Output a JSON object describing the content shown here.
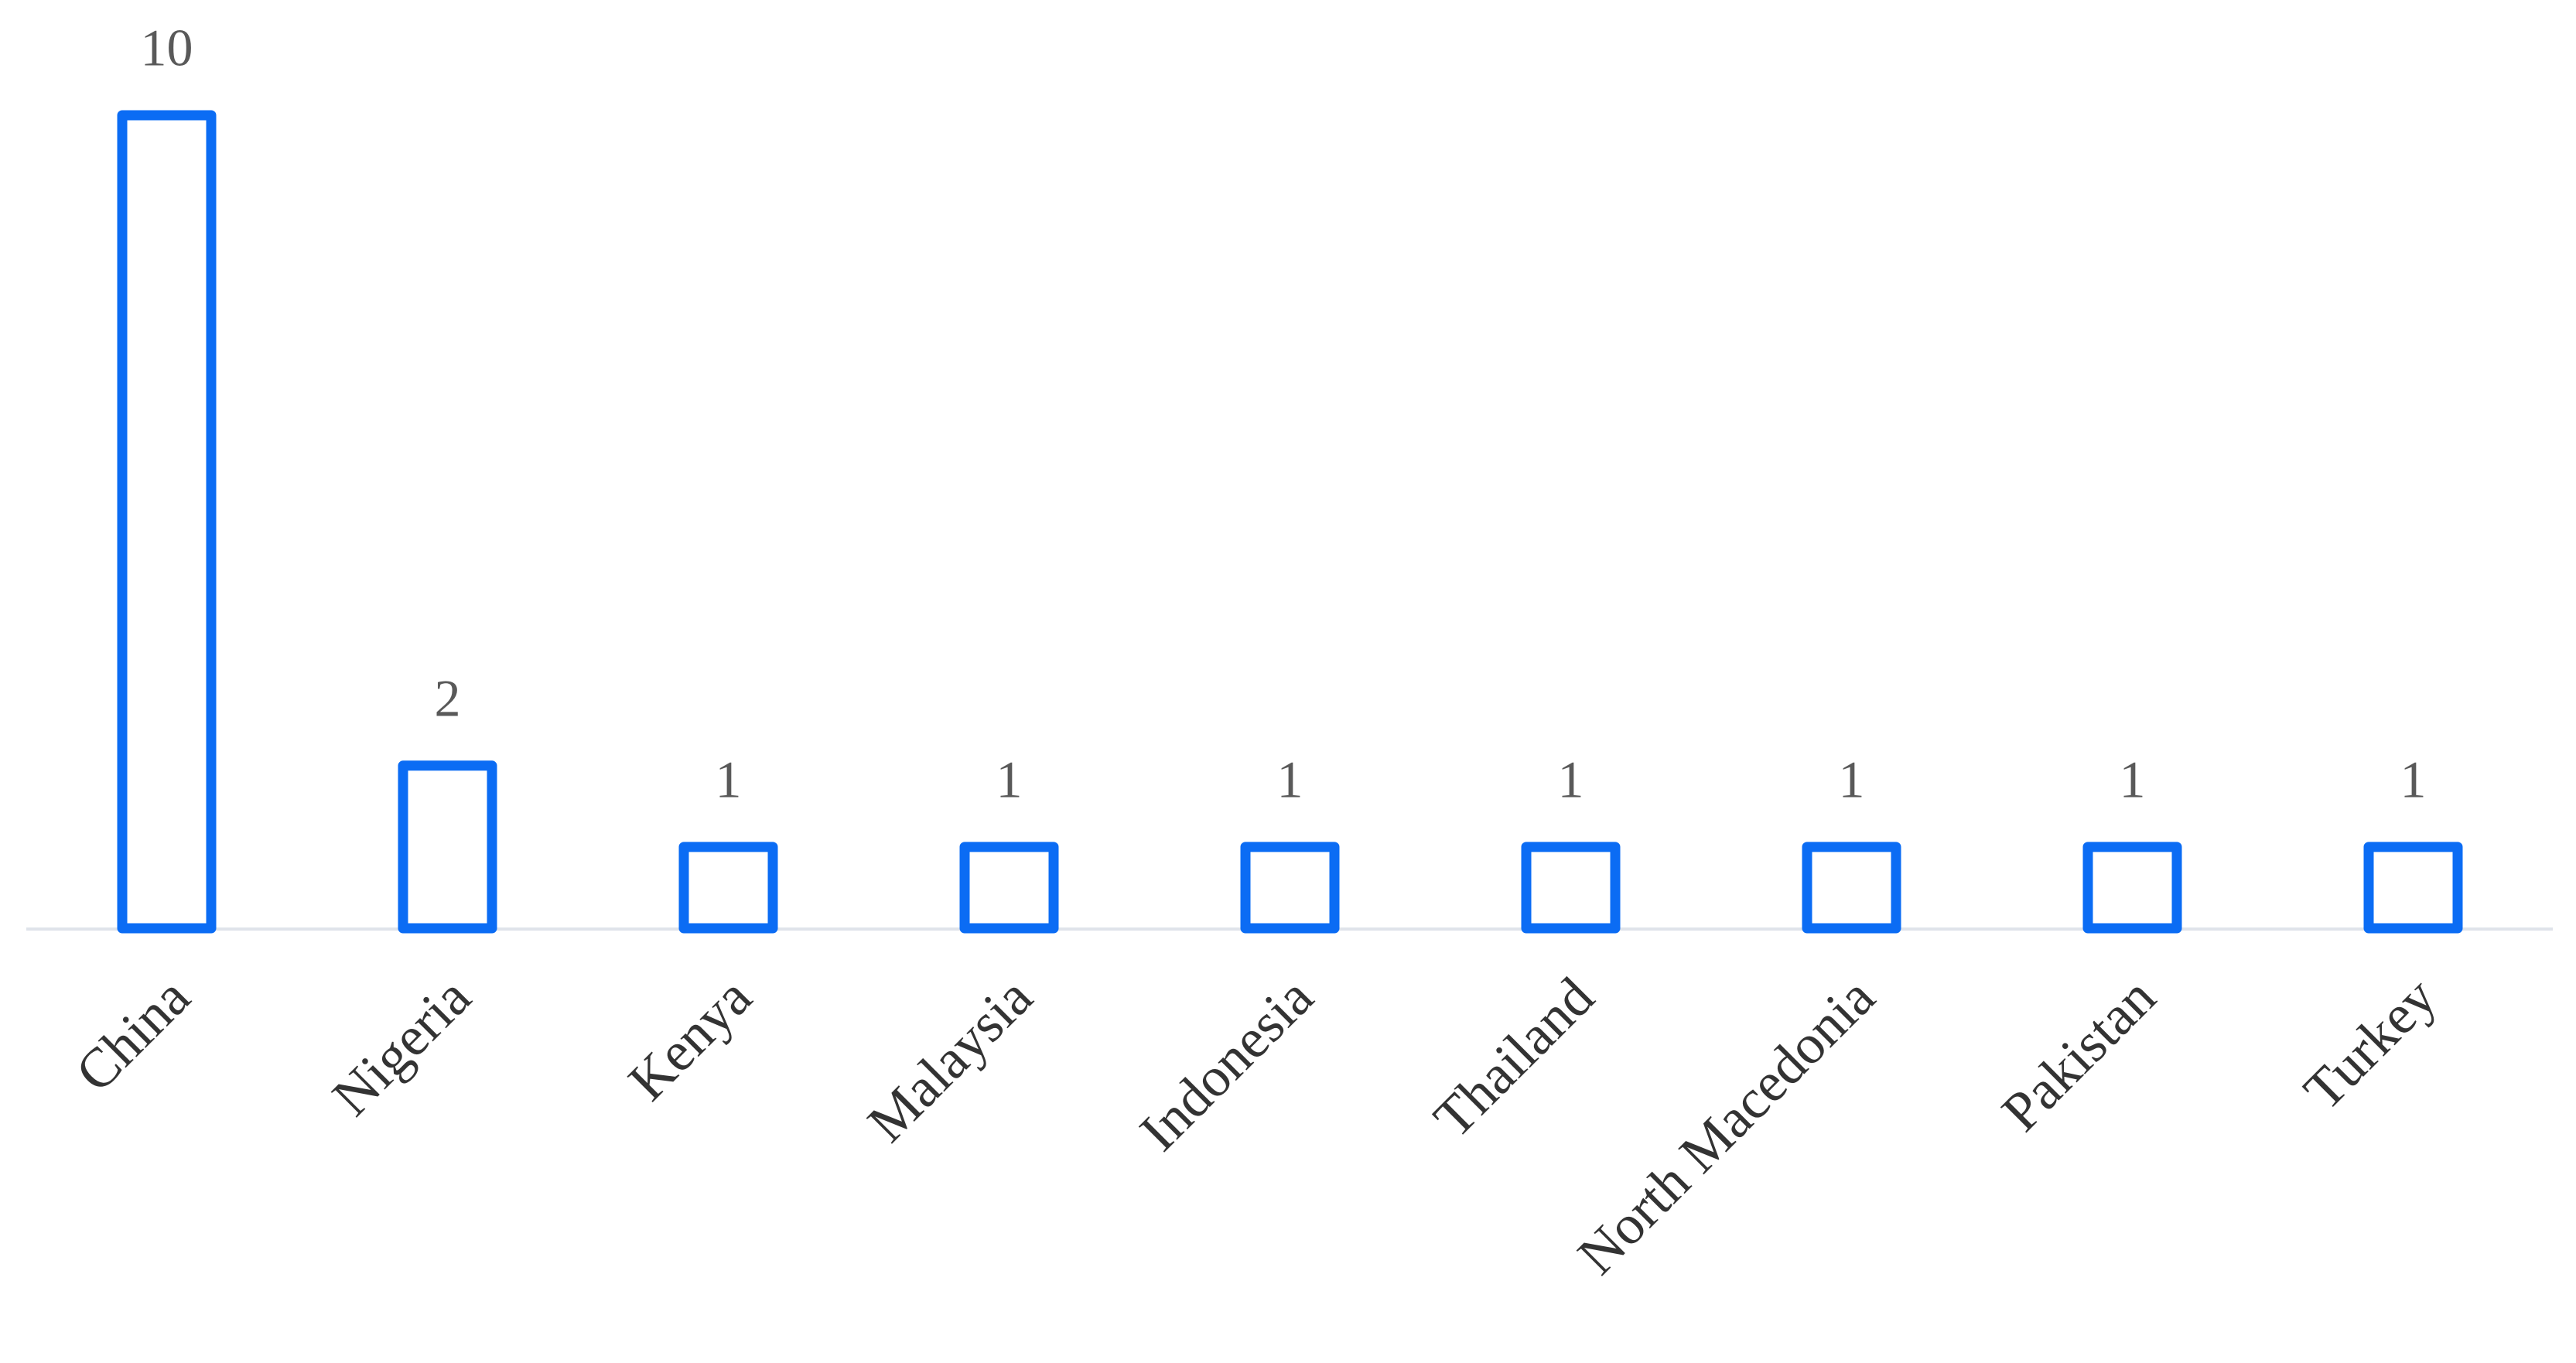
{
  "chart_data": {
    "type": "bar",
    "categories": [
      "China",
      "Nigeria",
      "Kenya",
      "Malaysia",
      "Indonesia",
      "Thailand",
      "North Macedonia",
      "Pakistan",
      "Turkey"
    ],
    "values": [
      10,
      2,
      1,
      1,
      1,
      1,
      1,
      1,
      1
    ],
    "color": "#0b6cf4"
  }
}
